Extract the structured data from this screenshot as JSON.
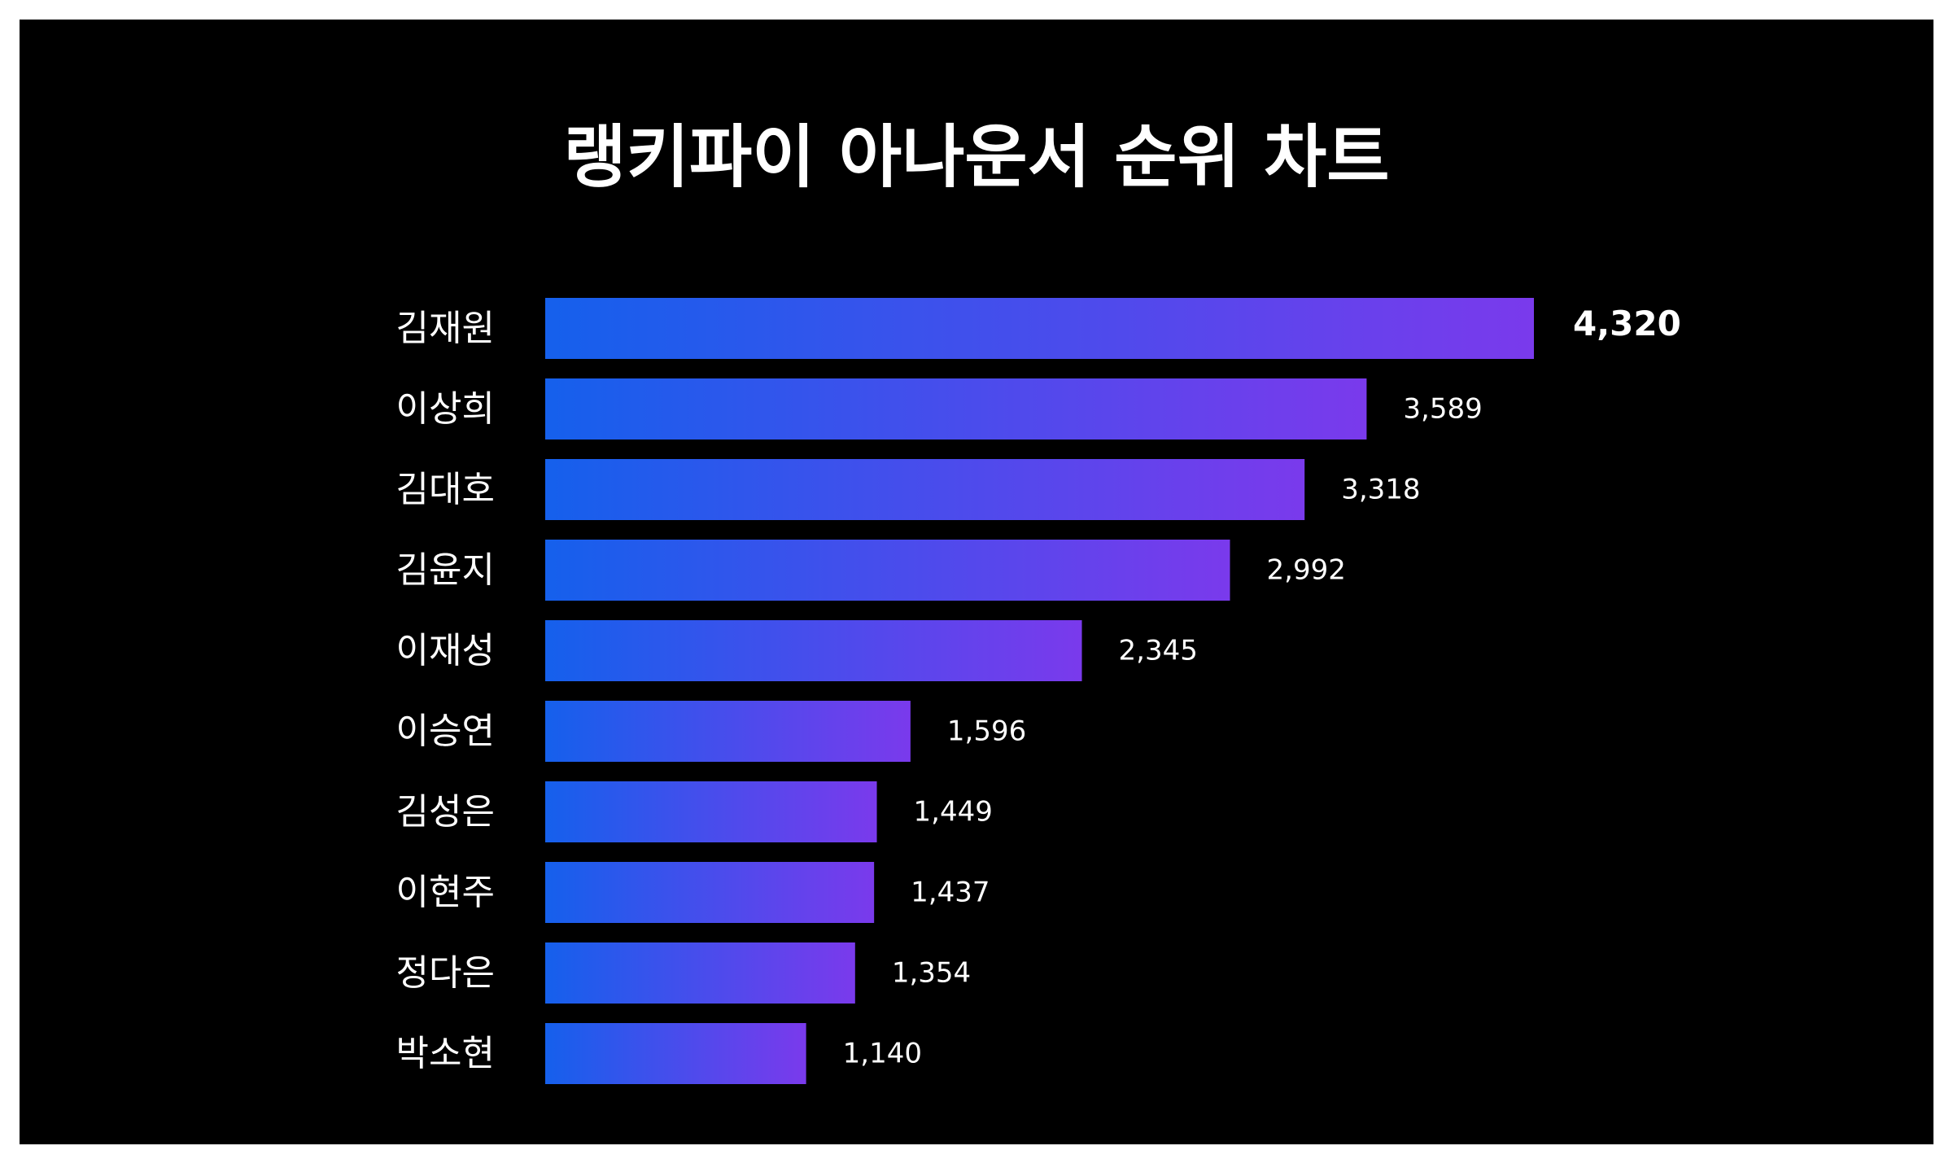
{
  "chart_data": {
    "type": "bar",
    "orientation": "horizontal",
    "title": "랭키파이 아나운서 순위 차트",
    "categories": [
      "김재원",
      "이상희",
      "김대호",
      "김윤지",
      "이재성",
      "이승연",
      "김성은",
      "이현주",
      "정다은",
      "박소현"
    ],
    "values": [
      4320,
      3589,
      3318,
      2992,
      2345,
      1596,
      1449,
      1437,
      1354,
      1140
    ],
    "value_labels": [
      "4,320",
      "3,589",
      "3,318",
      "2,992",
      "2,345",
      "1,596",
      "1,449",
      "1,437",
      "1,354",
      "1,140"
    ],
    "xlabel": "",
    "ylabel": "",
    "xlim": [
      0,
      4320
    ],
    "grid": false,
    "legend": "none",
    "colors": {
      "background": "#000000",
      "text": "#ffffff",
      "bar_gradient_start": "#1560ec",
      "bar_gradient_end": "#7a3aec"
    }
  }
}
